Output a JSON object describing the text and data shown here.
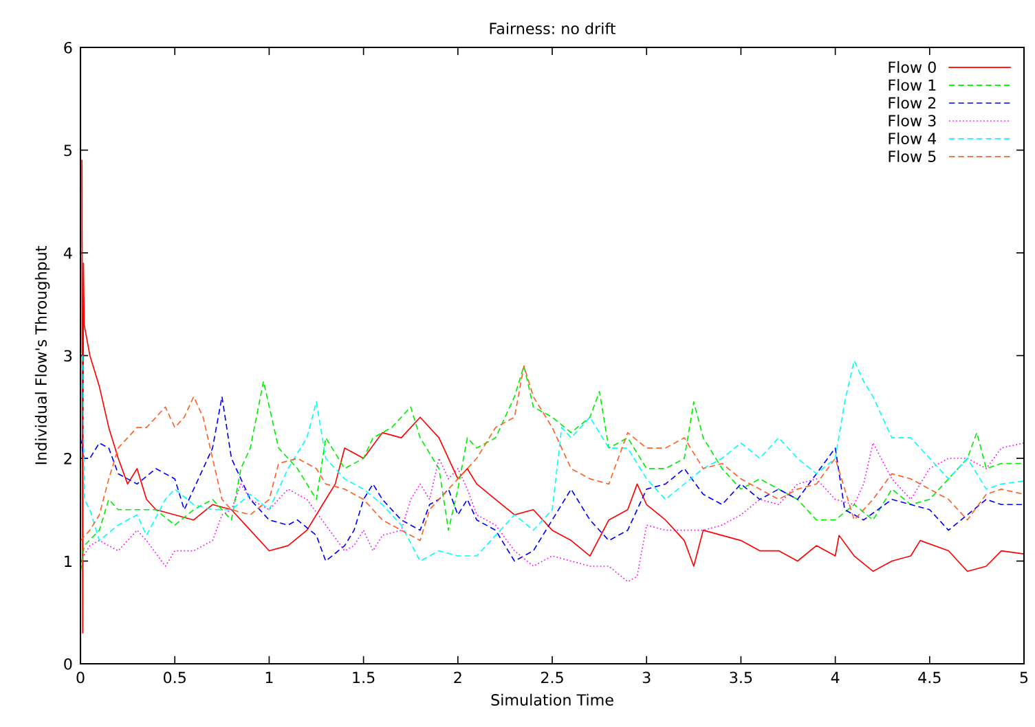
{
  "chart_data": {
    "type": "line",
    "title": "Fairness: no drift",
    "xlabel": "Simulation Time",
    "ylabel": "Individual Flow's Throughput",
    "xlim": [
      0,
      5
    ],
    "ylim": [
      0,
      6
    ],
    "xticks": [
      0,
      0.5,
      1,
      1.5,
      2,
      2.5,
      3,
      3.5,
      4,
      4.5,
      5
    ],
    "yticks": [
      0,
      1,
      2,
      3,
      4,
      5,
      6
    ],
    "grid": false,
    "legend": "top right",
    "marker": "none",
    "series": [
      {
        "name": "Flow 0",
        "color": "#ff0000",
        "line_style": "solid",
        "x": [
          0.008,
          0.012,
          0.016,
          0.02,
          0.05,
          0.1,
          0.15,
          0.2,
          0.25,
          0.3,
          0.35,
          0.4,
          0.5,
          0.6,
          0.7,
          0.8,
          0.9,
          1.0,
          1.1,
          1.2,
          1.3,
          1.35,
          1.4,
          1.5,
          1.6,
          1.7,
          1.8,
          1.9,
          2.0,
          2.05,
          2.1,
          2.2,
          2.3,
          2.4,
          2.5,
          2.6,
          2.7,
          2.8,
          2.9,
          2.95,
          3.0,
          3.1,
          3.2,
          3.25,
          3.3,
          3.5,
          3.6,
          3.7,
          3.8,
          3.9,
          4.0,
          4.02,
          4.1,
          4.2,
          4.3,
          4.4,
          4.45,
          4.6,
          4.7,
          4.8,
          4.88,
          5.0
        ],
        "values": [
          4.9,
          0.3,
          3.9,
          3.3,
          3.0,
          2.7,
          2.3,
          2.0,
          1.75,
          1.9,
          1.6,
          1.5,
          1.45,
          1.4,
          1.55,
          1.5,
          1.3,
          1.1,
          1.15,
          1.3,
          1.6,
          1.75,
          2.1,
          2.0,
          2.25,
          2.2,
          2.4,
          2.2,
          1.8,
          1.9,
          1.75,
          1.6,
          1.45,
          1.5,
          1.3,
          1.2,
          1.05,
          1.4,
          1.5,
          1.75,
          1.55,
          1.4,
          1.2,
          0.95,
          1.3,
          1.2,
          1.1,
          1.1,
          1.0,
          1.15,
          1.05,
          1.25,
          1.05,
          0.9,
          1.0,
          1.05,
          1.2,
          1.1,
          0.9,
          0.95,
          1.1,
          1.07
        ]
      },
      {
        "name": "Flow 1",
        "color": "#00ee00",
        "line_style": "dashed",
        "x": [
          0,
          0.02,
          0.1,
          0.15,
          0.2,
          0.3,
          0.4,
          0.5,
          0.6,
          0.7,
          0.8,
          0.85,
          0.9,
          0.97,
          1.05,
          1.15,
          1.25,
          1.3,
          1.4,
          1.5,
          1.55,
          1.65,
          1.75,
          1.8,
          1.9,
          1.95,
          2.0,
          2.05,
          2.1,
          2.2,
          2.3,
          2.35,
          2.4,
          2.5,
          2.6,
          2.7,
          2.75,
          2.8,
          2.9,
          3.0,
          3.1,
          3.2,
          3.25,
          3.3,
          3.4,
          3.5,
          3.6,
          3.7,
          3.8,
          3.9,
          4.0,
          4.1,
          4.2,
          4.3,
          4.4,
          4.5,
          4.6,
          4.7,
          4.75,
          4.8,
          4.88,
          5.0
        ],
        "values": [
          0.9,
          1.15,
          1.3,
          1.6,
          1.5,
          1.5,
          1.5,
          1.35,
          1.5,
          1.6,
          1.4,
          1.9,
          2.1,
          2.75,
          2.1,
          1.9,
          1.6,
          2.2,
          1.9,
          2.0,
          2.2,
          2.3,
          2.5,
          2.2,
          1.9,
          1.3,
          1.7,
          2.2,
          2.1,
          2.2,
          2.6,
          2.9,
          2.5,
          2.4,
          2.25,
          2.4,
          2.65,
          2.1,
          2.2,
          1.9,
          1.9,
          2.0,
          2.55,
          2.2,
          1.9,
          1.7,
          1.8,
          1.7,
          1.6,
          1.4,
          1.4,
          1.55,
          1.4,
          1.7,
          1.55,
          1.6,
          1.8,
          2.0,
          2.25,
          1.9,
          1.95,
          1.95
        ]
      },
      {
        "name": "Flow 2",
        "color": "#0000ff",
        "line_style": "dashed",
        "x": [
          0,
          0.02,
          0.05,
          0.1,
          0.15,
          0.2,
          0.3,
          0.4,
          0.5,
          0.55,
          0.6,
          0.7,
          0.75,
          0.8,
          0.9,
          1.0,
          1.1,
          1.15,
          1.25,
          1.3,
          1.4,
          1.45,
          1.5,
          1.55,
          1.6,
          1.7,
          1.8,
          1.85,
          1.9,
          1.95,
          2.0,
          2.05,
          2.1,
          2.2,
          2.3,
          2.4,
          2.5,
          2.6,
          2.7,
          2.8,
          2.9,
          3.0,
          3.1,
          3.2,
          3.3,
          3.4,
          3.5,
          3.6,
          3.7,
          3.8,
          3.9,
          4.0,
          4.05,
          4.15,
          4.3,
          4.4,
          4.5,
          4.6,
          4.7,
          4.8,
          4.88,
          5.0
        ],
        "values": [
          2.2,
          2.0,
          2.0,
          2.15,
          2.1,
          1.85,
          1.75,
          1.9,
          1.8,
          1.5,
          1.7,
          2.1,
          2.6,
          2.0,
          1.6,
          1.4,
          1.35,
          1.4,
          1.25,
          1.0,
          1.15,
          1.3,
          1.6,
          1.75,
          1.6,
          1.4,
          1.3,
          1.55,
          1.6,
          1.7,
          1.45,
          1.6,
          1.4,
          1.3,
          1.0,
          1.1,
          1.4,
          1.7,
          1.4,
          1.2,
          1.3,
          1.7,
          1.75,
          1.9,
          1.65,
          1.55,
          1.75,
          1.6,
          1.7,
          1.6,
          1.85,
          2.1,
          1.5,
          1.4,
          1.6,
          1.55,
          1.5,
          1.3,
          1.45,
          1.6,
          1.55,
          1.55
        ]
      },
      {
        "name": "Flow 3",
        "color": "#ff00ff",
        "line_style": "dotted",
        "x": [
          0,
          0.05,
          0.1,
          0.2,
          0.3,
          0.35,
          0.45,
          0.5,
          0.6,
          0.7,
          0.75,
          0.8,
          0.85,
          0.9,
          1.0,
          1.1,
          1.2,
          1.3,
          1.4,
          1.45,
          1.5,
          1.55,
          1.6,
          1.7,
          1.75,
          1.8,
          1.85,
          1.9,
          1.95,
          2.0,
          2.05,
          2.1,
          2.2,
          2.3,
          2.4,
          2.5,
          2.6,
          2.7,
          2.8,
          2.9,
          2.95,
          3.0,
          3.1,
          3.2,
          3.3,
          3.4,
          3.5,
          3.6,
          3.7,
          3.8,
          3.9,
          4.0,
          4.1,
          4.15,
          4.2,
          4.3,
          4.4,
          4.5,
          4.6,
          4.7,
          4.8,
          4.88,
          5.0
        ],
        "values": [
          1.0,
          1.15,
          1.2,
          1.1,
          1.3,
          1.2,
          0.95,
          1.1,
          1.1,
          1.2,
          1.45,
          1.5,
          1.75,
          1.6,
          1.5,
          1.7,
          1.6,
          1.35,
          1.1,
          1.15,
          1.3,
          1.1,
          1.25,
          1.3,
          1.6,
          1.75,
          1.6,
          2.0,
          1.8,
          1.9,
          1.7,
          1.45,
          1.35,
          1.1,
          0.95,
          1.05,
          1.0,
          0.95,
          0.95,
          0.8,
          0.85,
          1.35,
          1.3,
          1.3,
          1.3,
          1.35,
          1.45,
          1.6,
          1.55,
          1.75,
          1.8,
          1.6,
          1.55,
          1.75,
          2.15,
          1.8,
          1.6,
          1.9,
          2.0,
          2.0,
          1.9,
          2.1,
          2.15
        ]
      },
      {
        "name": "Flow 4",
        "color": "#00ffff",
        "line_style": "dashed",
        "x": [
          0.012,
          0.02,
          0.05,
          0.1,
          0.2,
          0.3,
          0.35,
          0.45,
          0.5,
          0.6,
          0.7,
          0.8,
          0.9,
          1.0,
          1.1,
          1.2,
          1.25,
          1.3,
          1.4,
          1.5,
          1.6,
          1.7,
          1.8,
          1.9,
          2.0,
          2.1,
          2.2,
          2.3,
          2.4,
          2.5,
          2.55,
          2.6,
          2.7,
          2.8,
          2.9,
          3.0,
          3.1,
          3.2,
          3.3,
          3.4,
          3.5,
          3.6,
          3.7,
          3.8,
          3.9,
          4.0,
          4.05,
          4.1,
          4.15,
          4.2,
          4.3,
          4.4,
          4.5,
          4.6,
          4.7,
          4.8,
          4.88,
          5.0
        ],
        "values": [
          3.0,
          1.6,
          1.5,
          1.2,
          1.35,
          1.45,
          1.25,
          1.6,
          1.7,
          1.55,
          1.5,
          1.5,
          1.65,
          1.5,
          1.9,
          2.2,
          2.55,
          2.0,
          1.8,
          1.7,
          1.55,
          1.35,
          1.0,
          1.1,
          1.05,
          1.05,
          1.25,
          1.45,
          1.3,
          1.5,
          2.3,
          2.2,
          2.4,
          2.1,
          2.1,
          1.8,
          1.6,
          1.75,
          1.9,
          2.0,
          2.15,
          2.0,
          2.2,
          2.0,
          1.85,
          2.0,
          2.55,
          2.95,
          2.75,
          2.6,
          2.2,
          2.2,
          2.0,
          1.8,
          2.0,
          1.7,
          1.75,
          1.78
        ]
      },
      {
        "name": "Flow 5",
        "color": "#ff6028",
        "line_style": "dashed",
        "x": [
          0,
          0.05,
          0.1,
          0.15,
          0.2,
          0.25,
          0.3,
          0.35,
          0.4,
          0.45,
          0.5,
          0.55,
          0.6,
          0.65,
          0.7,
          0.75,
          0.8,
          0.9,
          1.0,
          1.05,
          1.15,
          1.25,
          1.3,
          1.4,
          1.5,
          1.6,
          1.7,
          1.8,
          1.85,
          1.9,
          2.0,
          2.1,
          2.2,
          2.3,
          2.35,
          2.4,
          2.5,
          2.6,
          2.7,
          2.8,
          2.9,
          3.0,
          3.1,
          3.2,
          3.3,
          3.4,
          3.5,
          3.6,
          3.7,
          3.8,
          3.9,
          4.0,
          4.1,
          4.2,
          4.3,
          4.4,
          4.5,
          4.6,
          4.7,
          4.8,
          4.88,
          5.0
        ],
        "values": [
          1.2,
          1.3,
          1.45,
          1.8,
          2.1,
          2.2,
          2.3,
          2.3,
          2.4,
          2.5,
          2.3,
          2.4,
          2.6,
          2.4,
          2.0,
          1.6,
          1.5,
          1.45,
          1.6,
          1.95,
          2.0,
          1.9,
          1.75,
          1.7,
          1.6,
          1.4,
          1.3,
          1.2,
          1.5,
          1.6,
          1.8,
          2.0,
          2.3,
          2.4,
          2.9,
          2.6,
          2.3,
          1.9,
          1.8,
          1.75,
          2.25,
          2.1,
          2.1,
          2.2,
          1.9,
          1.95,
          1.8,
          1.7,
          1.6,
          1.7,
          1.75,
          2.0,
          1.4,
          1.6,
          1.85,
          1.8,
          1.7,
          1.6,
          1.4,
          1.65,
          1.7,
          1.65
        ]
      }
    ]
  }
}
